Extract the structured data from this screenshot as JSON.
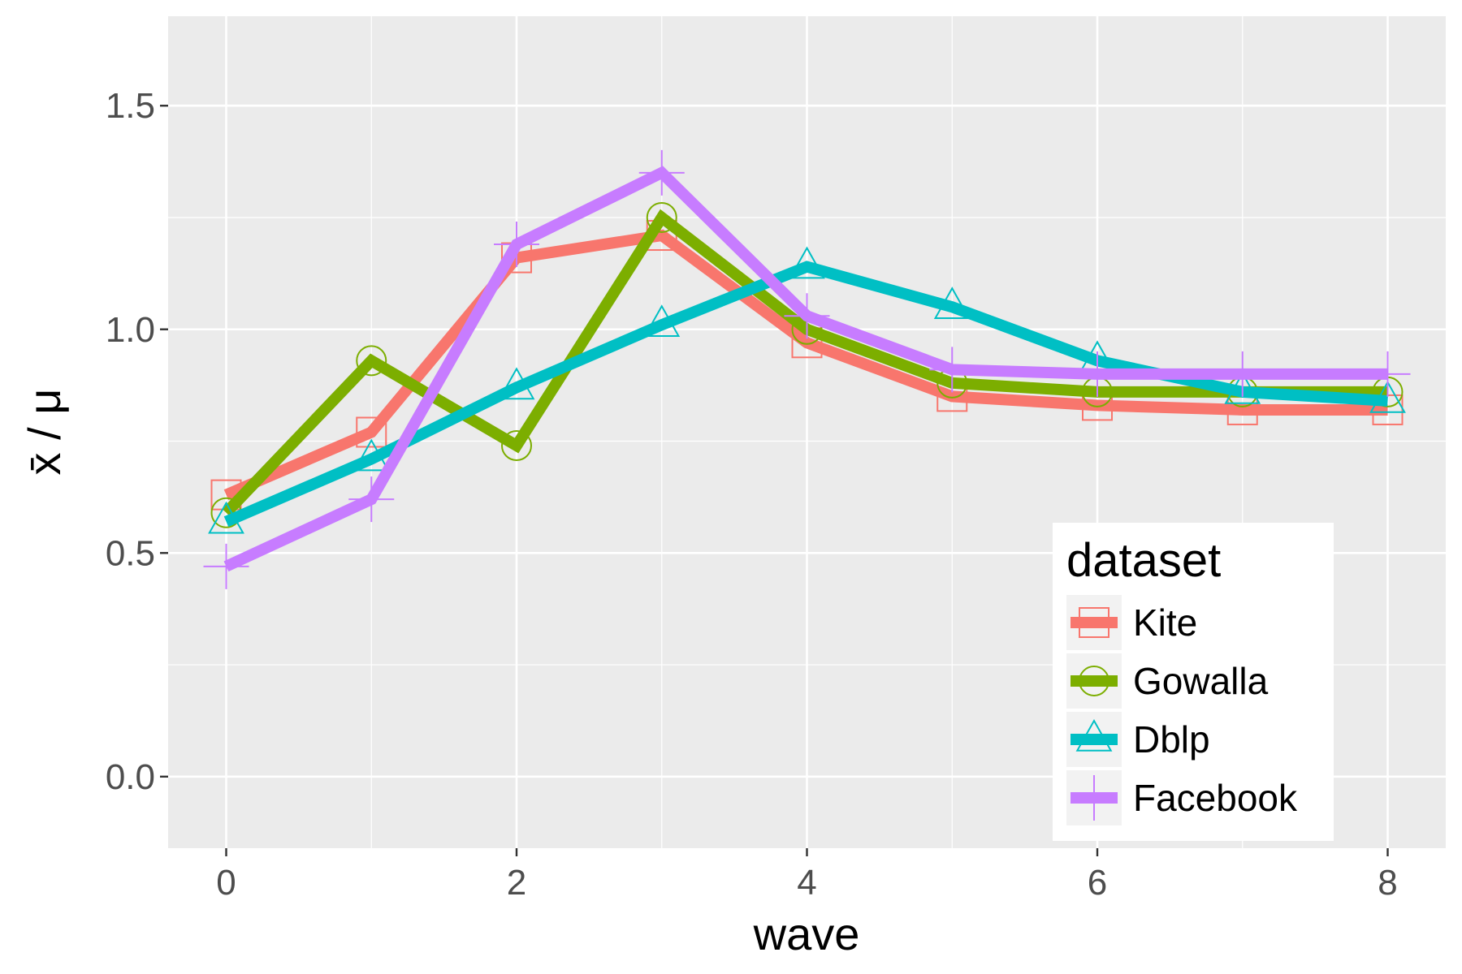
{
  "chart_data": {
    "type": "line",
    "title": "",
    "xlabel": "wave",
    "ylabel": "x̄ / μ",
    "xlim": [
      -0.4,
      8.4
    ],
    "ylim": [
      -0.16,
      1.7
    ],
    "x_ticks": [
      0,
      2,
      4,
      6,
      8
    ],
    "x_tick_labels": [
      "0",
      "2",
      "4",
      "6",
      "8"
    ],
    "x_minor_ticks": [
      1,
      3,
      5,
      7
    ],
    "y_ticks": [
      0.0,
      0.5,
      1.0,
      1.5
    ],
    "y_tick_labels": [
      "0.0",
      "0.5",
      "1.0",
      "1.5"
    ],
    "y_minor_ticks": [
      0.25,
      0.75,
      1.25
    ],
    "grid": true,
    "legend": {
      "title": "dataset",
      "position": "bottom-right-inside"
    },
    "x": [
      0,
      1,
      2,
      3,
      4,
      5,
      6,
      7,
      8
    ],
    "series": [
      {
        "name": "Kite",
        "color": "#F8766D",
        "marker": "square",
        "values": [
          0.63,
          0.77,
          1.16,
          1.21,
          0.97,
          0.85,
          0.83,
          0.82,
          0.82
        ]
      },
      {
        "name": "Gowalla",
        "color": "#7CAE00",
        "marker": "circle",
        "values": [
          0.59,
          0.93,
          0.74,
          1.25,
          1.0,
          0.88,
          0.86,
          0.86,
          0.86
        ]
      },
      {
        "name": "Dblp",
        "color": "#00BFC4",
        "marker": "triangle",
        "values": [
          0.57,
          0.71,
          0.87,
          1.01,
          1.14,
          1.05,
          0.93,
          0.86,
          0.84
        ]
      },
      {
        "name": "Facebook",
        "color": "#C77CFF",
        "marker": "plus",
        "values": [
          0.47,
          0.62,
          1.19,
          1.35,
          1.03,
          0.91,
          0.9,
          0.9,
          0.9
        ]
      }
    ]
  }
}
